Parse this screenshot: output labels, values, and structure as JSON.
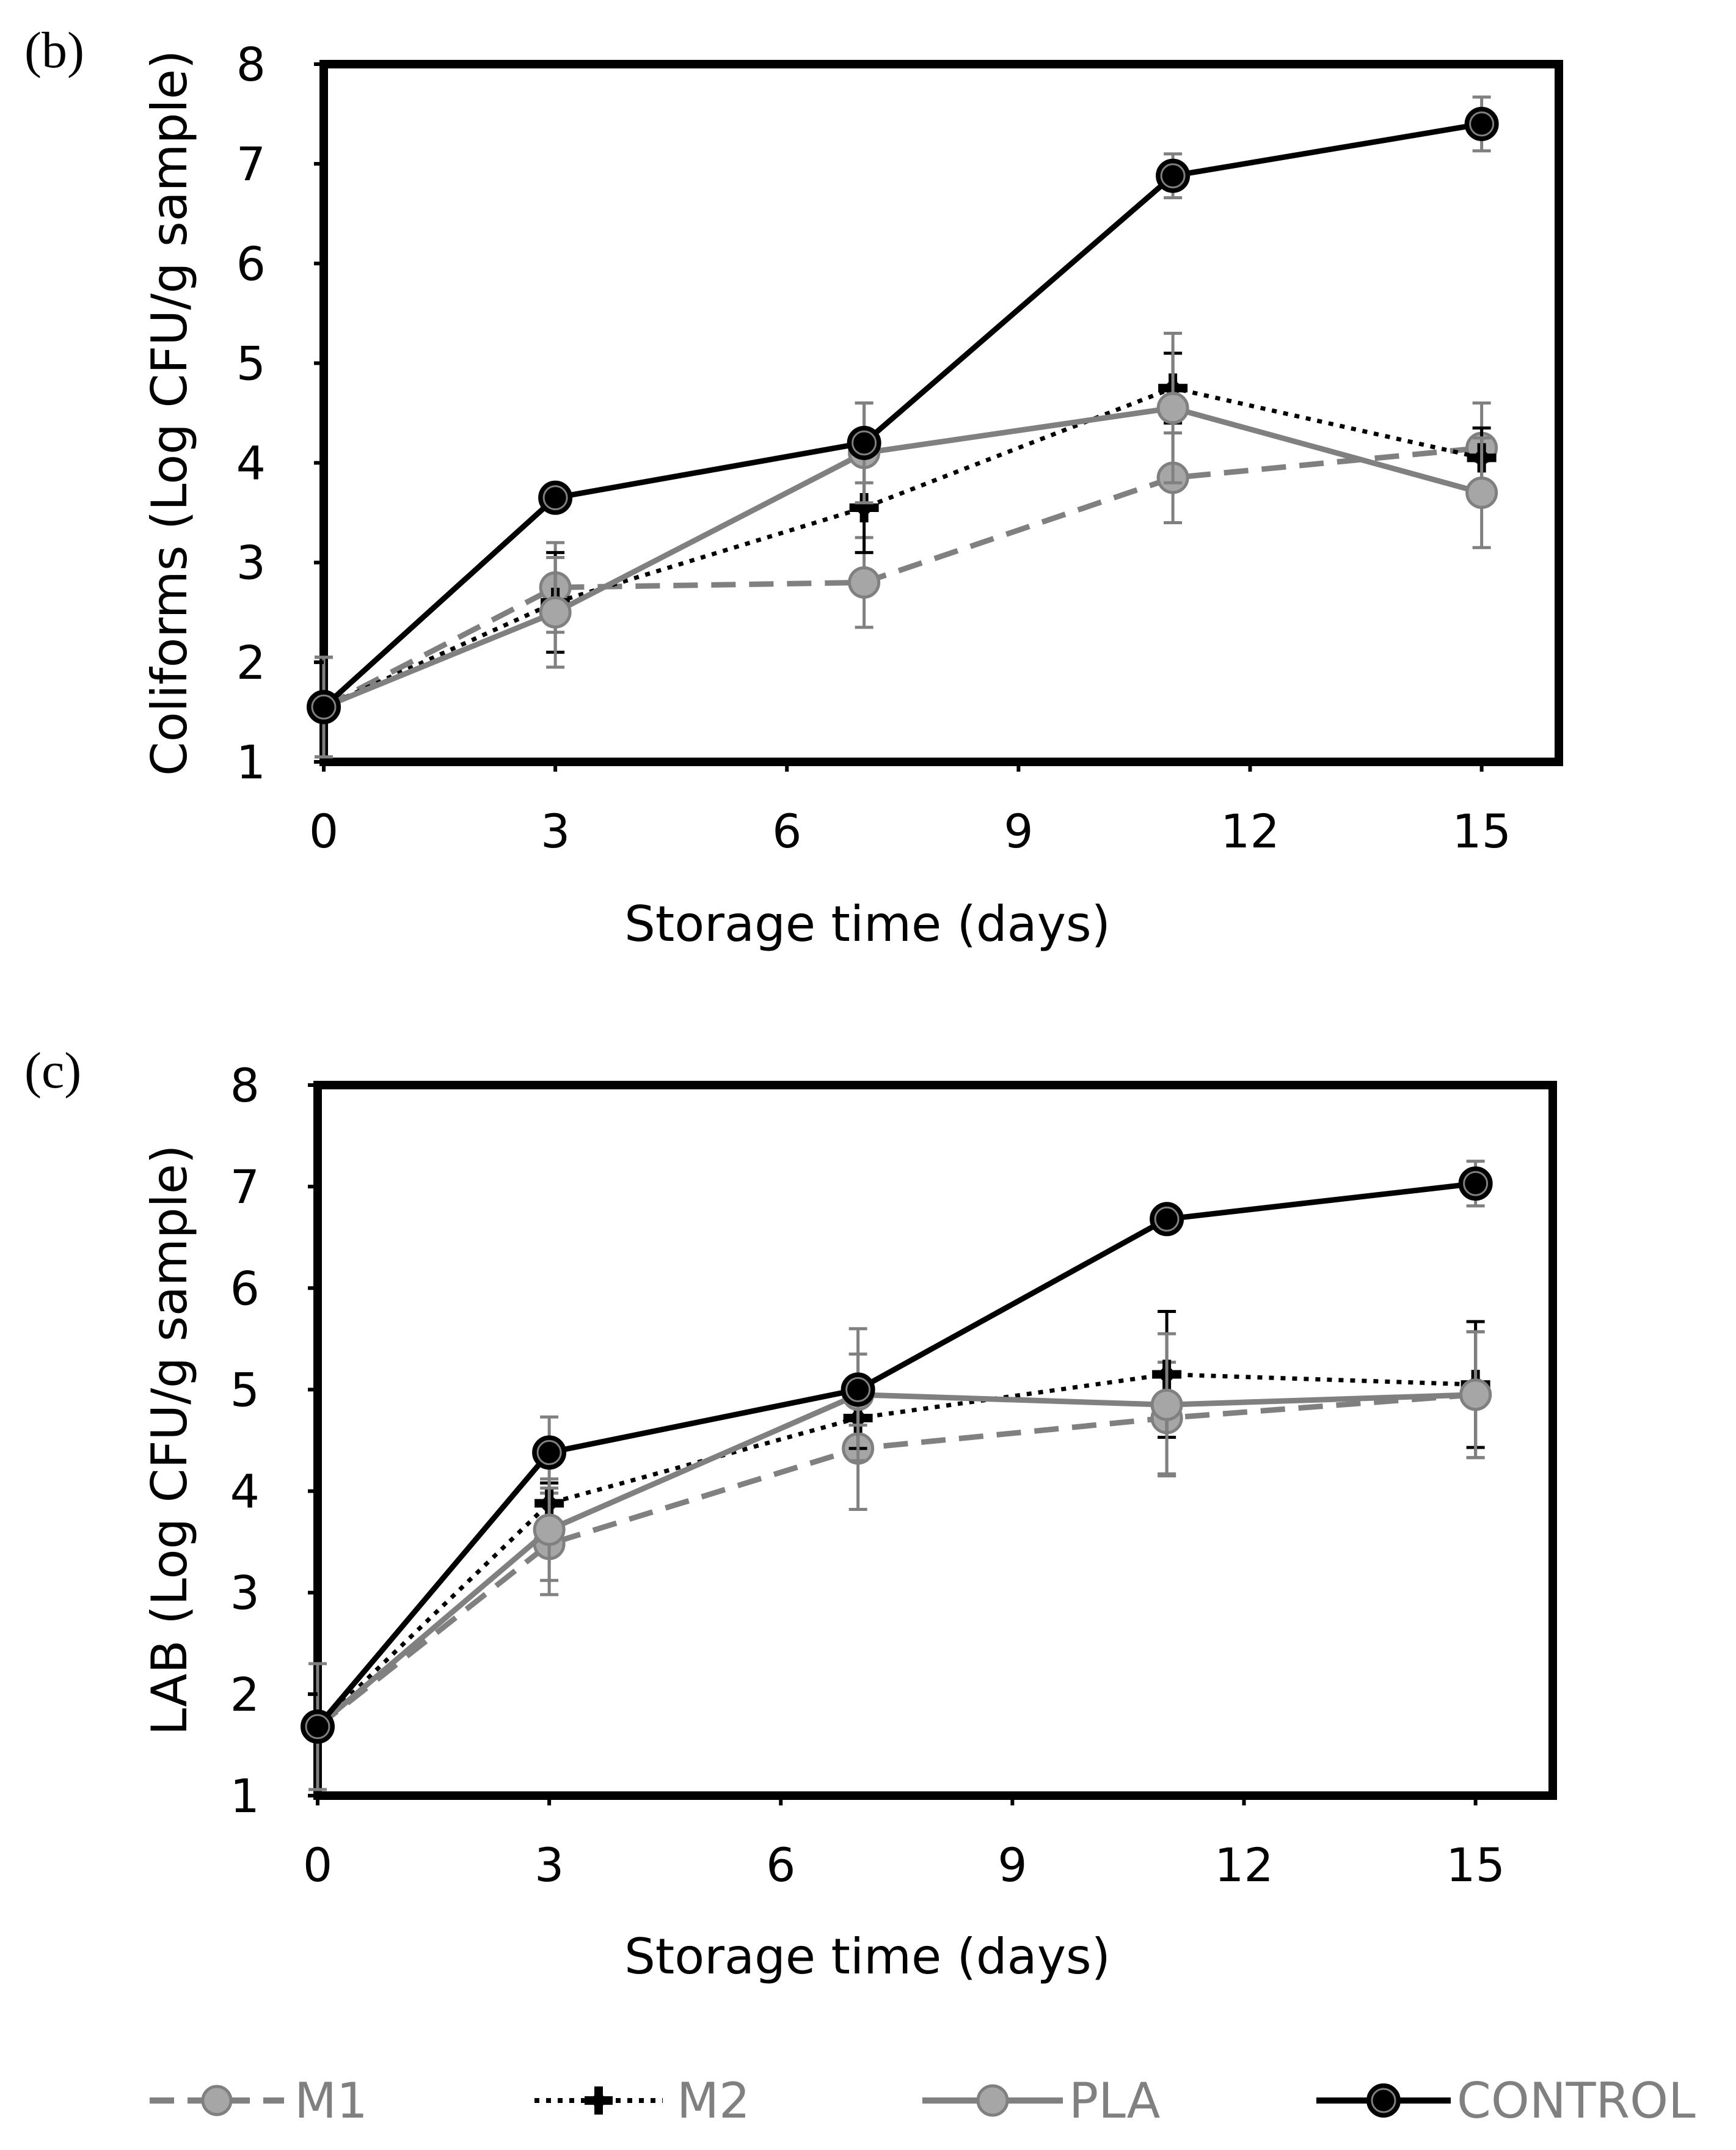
{
  "chart_data": [
    {
      "type": "line",
      "panel_label": "(b)",
      "xlabel": "Storage time (days)",
      "ylabel": "Coliforms (Log CFU/g sample)",
      "xlim": [
        0,
        16
      ],
      "ylim": [
        1,
        8
      ],
      "xticks": [
        0,
        3,
        6,
        9,
        12,
        15
      ],
      "yticks": [
        1,
        2,
        3,
        4,
        5,
        6,
        7,
        8
      ],
      "x": [
        0,
        3,
        7,
        11,
        15
      ],
      "series": [
        {
          "name": "M1",
          "values": [
            1.55,
            2.75,
            2.8,
            3.85,
            4.15
          ],
          "errors": [
            0.5,
            0.45,
            0.45,
            0.45,
            0.45
          ]
        },
        {
          "name": "M2",
          "values": [
            1.55,
            2.6,
            3.55,
            4.75,
            4.05
          ],
          "errors": [
            0.5,
            0.5,
            0.45,
            0.35,
            0.3
          ]
        },
        {
          "name": "PLA",
          "values": [
            1.55,
            2.5,
            4.1,
            4.55,
            3.7
          ],
          "errors": [
            0.5,
            0.55,
            0.5,
            0.75,
            0.55
          ]
        },
        {
          "name": "CONTROL",
          "values": [
            1.55,
            3.65,
            4.2,
            6.88,
            7.4
          ],
          "errors": [
            0.1,
            0.08,
            0.4,
            0.22,
            0.27
          ]
        }
      ]
    },
    {
      "type": "line",
      "panel_label": "(c)",
      "xlabel": "Storage time (days)",
      "ylabel": "LAB (Log CFU/g sample)",
      "xlim": [
        0,
        16
      ],
      "ylim": [
        1,
        8
      ],
      "xticks": [
        0,
        3,
        6,
        9,
        12,
        15
      ],
      "yticks": [
        1,
        2,
        3,
        4,
        5,
        6,
        7,
        8
      ],
      "x": [
        0,
        3,
        7,
        11,
        15
      ],
      "series": [
        {
          "name": "M1",
          "values": [
            1.68,
            3.48,
            4.42,
            4.72,
            4.95
          ],
          "errors": [
            0.62,
            0.5,
            0.6,
            0.55,
            0.62
          ]
        },
        {
          "name": "M2",
          "values": [
            1.68,
            3.88,
            4.72,
            5.15,
            5.05
          ],
          "errors": [
            0.62,
            0.2,
            0.3,
            0.62,
            0.62
          ]
        },
        {
          "name": "PLA",
          "values": [
            1.68,
            3.62,
            4.95,
            4.85,
            4.95
          ],
          "errors": [
            0.62,
            0.5,
            0.65,
            0.7,
            0.62
          ]
        },
        {
          "name": "CONTROL",
          "values": [
            1.68,
            4.38,
            5.0,
            6.68,
            7.03
          ],
          "errors": [
            0.05,
            0.35,
            0.35,
            0.12,
            0.22
          ]
        }
      ]
    }
  ],
  "legend": [
    {
      "name": "M1",
      "label": "M1",
      "color": "#808080",
      "style": "dashed",
      "marker": "circle-light"
    },
    {
      "name": "M2",
      "label": "M2",
      "color": "#000000",
      "style": "dotted",
      "marker": "cross"
    },
    {
      "name": "PLA",
      "label": "PLA",
      "color": "#808080",
      "style": "solid",
      "marker": "circle-light"
    },
    {
      "name": "CONTROL",
      "label": "CONTROL",
      "color": "#000000",
      "style": "solid",
      "marker": "circle-ringed"
    }
  ]
}
